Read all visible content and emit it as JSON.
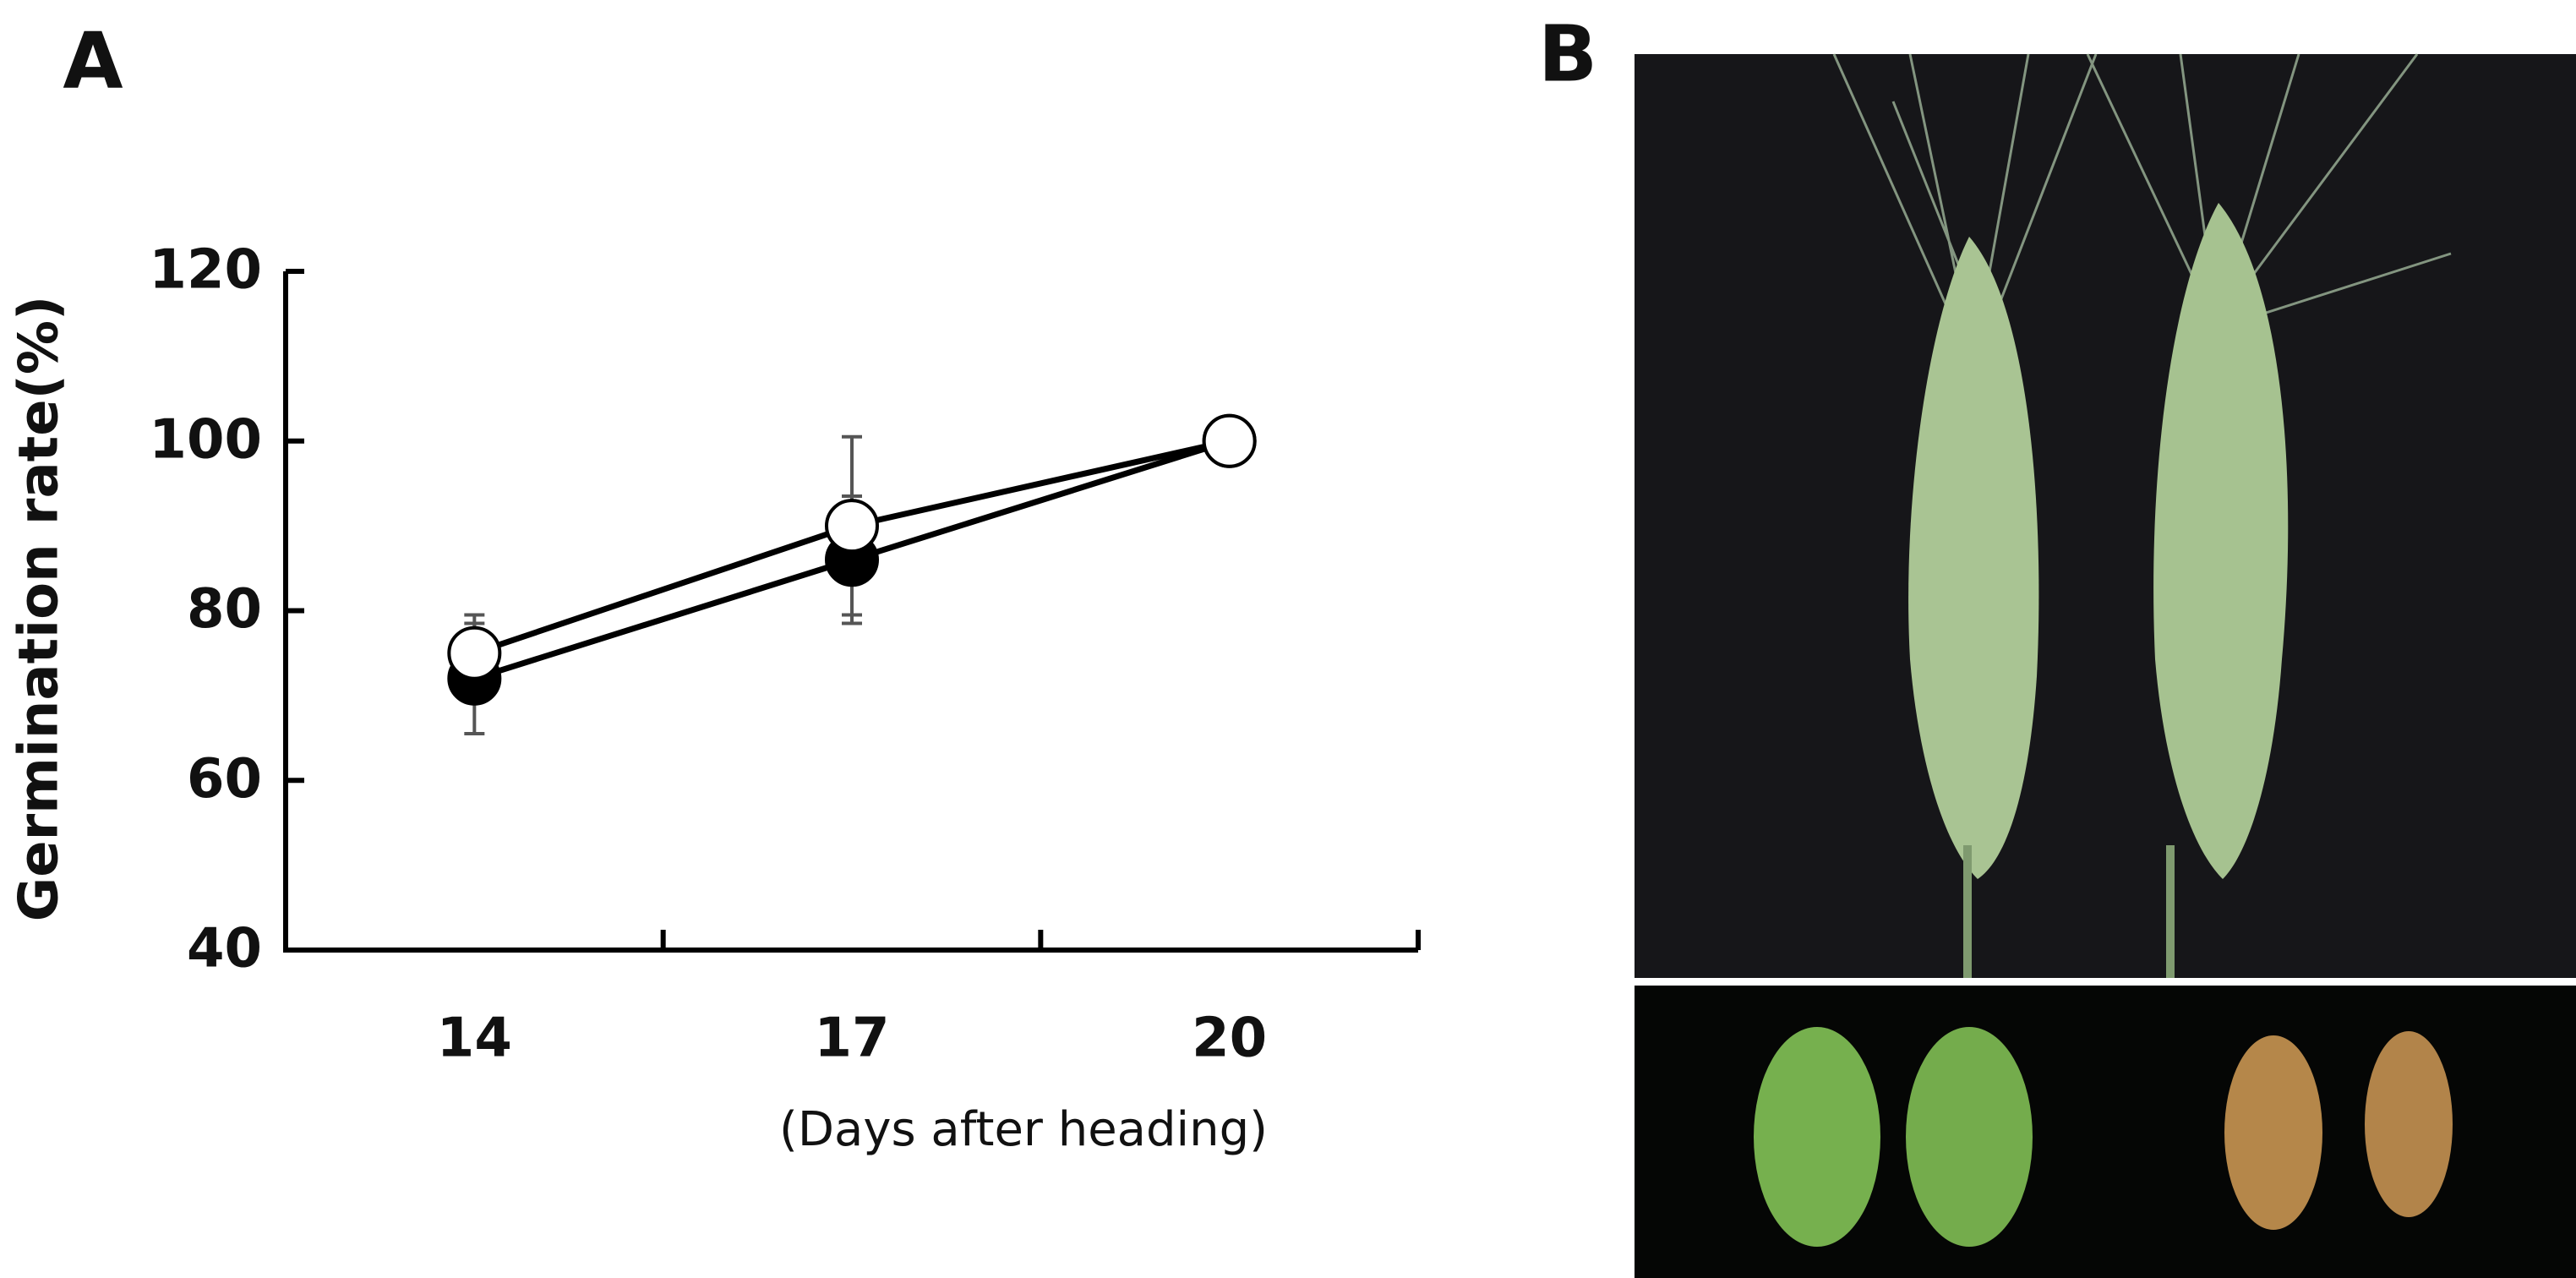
{
  "panel_labels": [
    "A",
    "B"
  ],
  "chart_data": {
    "type": "line",
    "y_label": "Germination rate(%)",
    "x_label": "(Days after heading)",
    "categories": [
      "14",
      "17",
      "20"
    ],
    "series": [
      {
        "color": "#000000",
        "values": [
          72,
          86,
          100
        ],
        "errors": [
          6.5,
          7.5,
          0
        ]
      },
      {
        "color": "#ffffff",
        "values": [
          75,
          90,
          100
        ],
        "errors": [
          4.5,
          10.5,
          0
        ]
      }
    ],
    "ylim": [
      40,
      120
    ],
    "yticks": [
      40,
      60,
      80,
      100,
      120
    ]
  }
}
